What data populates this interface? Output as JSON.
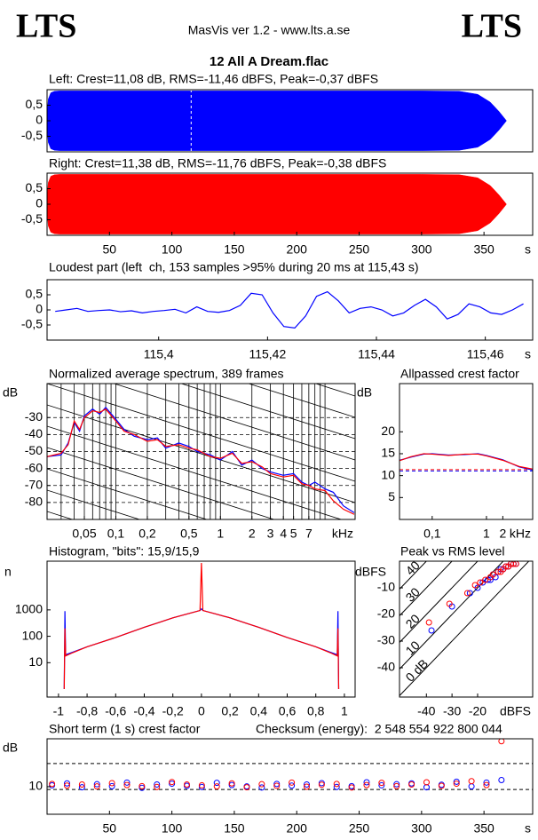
{
  "header": {
    "logo_left": "LTS",
    "app": "MasVis ver 1.2 - www.lts.a.se",
    "logo_right": "LTS",
    "file": "12 All A Dream.flac"
  },
  "chart_data": [
    {
      "type": "area",
      "title": "Left: Crest=11,08 dB, RMS=-11,46 dBFS, Peak=-0,37 dBFS",
      "x": [
        0,
        1,
        3,
        6,
        10,
        50,
        100,
        150,
        200,
        250,
        300,
        330,
        345,
        355,
        362,
        366,
        368
      ],
      "series": [
        {
          "color": "#0000ff",
          "values": [
            0.2,
            0.7,
            0.9,
            0.95,
            0.96,
            0.96,
            0.96,
            0.96,
            0.96,
            0.96,
            0.96,
            0.95,
            0.85,
            0.6,
            0.3,
            0.1,
            0
          ]
        },
        {
          "color": "#0000ff",
          "values": [
            -0.2,
            -0.7,
            -0.9,
            -0.95,
            -0.96,
            -0.96,
            -0.96,
            -0.96,
            -0.96,
            -0.96,
            -0.96,
            -0.95,
            -0.85,
            -0.6,
            -0.3,
            -0.1,
            0
          ]
        }
      ],
      "xlim": [
        0,
        389
      ],
      "ylim": [
        -1,
        1
      ],
      "yticks": [
        {
          "value": 0.5,
          "label": "0,5"
        },
        0,
        {
          "value": -0.5,
          "label": "-0,5"
        }
      ],
      "highlight_x": 115.43
    },
    {
      "type": "area",
      "title": "Right: Crest=11,38 dB, RMS=-11,76 dBFS, Peak=-0,38 dBFS",
      "x": [
        0,
        1,
        3,
        6,
        10,
        50,
        100,
        150,
        200,
        250,
        300,
        330,
        345,
        355,
        362,
        366,
        368
      ],
      "series": [
        {
          "color": "#ff0000",
          "values": [
            0.2,
            0.7,
            0.9,
            0.95,
            0.96,
            0.96,
            0.96,
            0.96,
            0.96,
            0.96,
            0.96,
            0.95,
            0.85,
            0.6,
            0.3,
            0.1,
            0
          ]
        },
        {
          "color": "#ff0000",
          "values": [
            -0.2,
            -0.7,
            -0.9,
            -0.95,
            -0.96,
            -0.96,
            -0.96,
            -0.96,
            -0.96,
            -0.96,
            -0.96,
            -0.95,
            -0.85,
            -0.6,
            -0.3,
            -0.1,
            0
          ]
        }
      ],
      "xlim": [
        0,
        389
      ],
      "ylim": [
        -1,
        1
      ],
      "yticks": [
        {
          "value": 0.5,
          "label": "0,5"
        },
        0,
        {
          "value": -0.5,
          "label": "-0,5"
        }
      ],
      "xticks": [
        50,
        100,
        150,
        200,
        250,
        300,
        350
      ],
      "x_unit": "s"
    },
    {
      "type": "line",
      "title": "Loudest part (left  ch, 153 samples >95% during 20 ms at 115,43 s)",
      "x": [
        115.381,
        115.383,
        115.385,
        115.387,
        115.389,
        115.391,
        115.393,
        115.395,
        115.397,
        115.399,
        115.401,
        115.403,
        115.405,
        115.407,
        115.409,
        115.411,
        115.413,
        115.415,
        115.417,
        115.419,
        115.421,
        115.423,
        115.425,
        115.427,
        115.429,
        115.431,
        115.433,
        115.435,
        115.437,
        115.439,
        115.441,
        115.443,
        115.445,
        115.447,
        115.449,
        115.451,
        115.453,
        115.455,
        115.457,
        115.459,
        115.461,
        115.463,
        115.465,
        115.467
      ],
      "series": [
        {
          "color": "#0000ff",
          "values": [
            -0.05,
            0,
            0.05,
            -0.05,
            -0.02,
            0,
            -0.06,
            -0.03,
            -0.1,
            -0.05,
            -0.02,
            0.02,
            -0.1,
            0.1,
            -0.05,
            -0.08,
            -0.02,
            0.15,
            0.55,
            0.5,
            -0.1,
            -0.55,
            -0.6,
            -0.2,
            0.45,
            0.6,
            0.3,
            -0.1,
            0.05,
            0.1,
            0,
            -0.2,
            -0.1,
            0.15,
            0.35,
            0.1,
            -0.3,
            -0.15,
            0.2,
            0.1,
            -0.1,
            -0.15,
            0,
            0.2
          ]
        }
      ],
      "xlim": [
        115.3795,
        115.4687
      ],
      "ylim": [
        -1,
        1
      ],
      "yticks": [
        {
          "value": 0.5,
          "label": "0,5"
        },
        0,
        {
          "value": -0.5,
          "label": "-0,5"
        }
      ],
      "xticks": [
        {
          "value": 115.4,
          "label": "115,4"
        },
        {
          "value": 115.42,
          "label": "115,42"
        },
        {
          "value": 115.44,
          "label": "115,44"
        },
        {
          "value": 115.46,
          "label": "115,46"
        }
      ],
      "x_unit": "s"
    },
    {
      "type": "line",
      "title": "Normalized average spectrum, 389 frames",
      "y_unit": "dB",
      "x_unit": "kHz",
      "xscale": "log",
      "grid": true,
      "x": [
        0.022,
        0.03,
        0.035,
        0.04,
        0.045,
        0.05,
        0.06,
        0.07,
        0.08,
        0.1,
        0.12,
        0.15,
        0.2,
        0.25,
        0.3,
        0.4,
        0.5,
        0.6,
        0.8,
        1,
        1.3,
        1.6,
        2,
        2.5,
        3,
        4,
        5,
        6,
        7,
        8,
        10,
        12,
        15,
        19
      ],
      "series": [
        {
          "color": "#0000ff",
          "values": [
            -53,
            -52,
            -45,
            -33,
            -38,
            -29,
            -25,
            -28,
            -24,
            -31,
            -37,
            -41,
            -43,
            -42,
            -48,
            -45,
            -47,
            -50,
            -52,
            -55,
            -50,
            -58,
            -55,
            -60,
            -62,
            -64,
            -63,
            -68,
            -70,
            -68,
            -72,
            -74,
            -82,
            -86
          ]
        },
        {
          "color": "#ff0000",
          "values": [
            -53,
            -51,
            -46,
            -32,
            -37,
            -30,
            -26,
            -27,
            -25,
            -32,
            -38,
            -40,
            -44,
            -43,
            -47,
            -46,
            -48,
            -49,
            -53,
            -54,
            -51,
            -57,
            -56,
            -59,
            -63,
            -65,
            -64,
            -69,
            -70,
            -72,
            -73,
            -79,
            -84,
            -87
          ]
        }
      ],
      "xlim": [
        0.022,
        19.4
      ],
      "ylim": [
        -90,
        -10
      ],
      "yticks": [
        -30,
        -40,
        -50,
        -60,
        -70,
        -80
      ],
      "xticks": [
        {
          "value": 0.05,
          "label": "0,05"
        },
        {
          "value": 0.1,
          "label": "0,1"
        },
        {
          "value": 0.2,
          "label": "0,2"
        },
        {
          "value": 0.5,
          "label": "0,5"
        },
        1,
        2,
        3,
        4,
        5,
        7
      ],
      "minor_xticks": [
        0.03,
        0.04,
        0.06,
        0.07,
        0.08,
        0.09,
        0.3,
        0.4,
        0.6,
        0.7,
        0.8,
        0.9,
        6,
        8,
        9,
        10
      ]
    },
    {
      "type": "line",
      "title": "Allpassed crest factor",
      "y_unit": "dB",
      "x_unit": "kHz",
      "xscale": "log",
      "x": [
        0.025,
        0.04,
        0.07,
        0.1,
        0.2,
        0.4,
        0.7,
        1,
        2,
        4,
        7
      ],
      "series": [
        {
          "color": "#0000ff",
          "values": [
            13.5,
            14.2,
            14.9,
            15,
            14.7,
            14.8,
            15,
            14.6,
            13.6,
            12,
            11.3
          ]
        },
        {
          "color": "#ff0000",
          "values": [
            13.4,
            14.3,
            15,
            14.9,
            14.6,
            14.9,
            14.9,
            14.5,
            13.5,
            12.1,
            11.5
          ]
        }
      ],
      "xlim": [
        0.025,
        7.1
      ],
      "ylim": [
        0,
        31
      ],
      "yticks": [
        20,
        15,
        10,
        5
      ],
      "xticks": [
        {
          "value": 0.1,
          "label": "0,1"
        },
        1,
        2
      ],
      "reference_lines": [
        {
          "value": 11.08,
          "color": "#0000ff"
        },
        {
          "value": 11.38,
          "color": "#ff0000"
        }
      ]
    },
    {
      "type": "line",
      "title": "Histogram, \"bits\": 15,9/15,9",
      "y_unit": "n",
      "yscale": "log",
      "x": [
        -0.96,
        -0.955,
        -0.95,
        -0.9,
        -0.8,
        -0.7,
        -0.6,
        -0.5,
        -0.4,
        -0.3,
        -0.2,
        -0.1,
        -0.01,
        0,
        0.01,
        0.1,
        0.2,
        0.3,
        0.4,
        0.5,
        0.6,
        0.7,
        0.8,
        0.9,
        0.95,
        0.955,
        0.96
      ],
      "series": [
        {
          "color": "#0000ff",
          "values": [
            1,
            900,
            20,
            25,
            40,
            60,
            90,
            140,
            220,
            330,
            500,
            700,
            950,
            1100,
            950,
            700,
            500,
            330,
            220,
            140,
            90,
            60,
            40,
            25,
            20,
            900,
            1
          ]
        },
        {
          "color": "#ff0000",
          "values": [
            1,
            200,
            18,
            24,
            40,
            60,
            90,
            140,
            220,
            330,
            500,
            700,
            950,
            60000,
            950,
            700,
            500,
            330,
            220,
            140,
            90,
            60,
            40,
            24,
            18,
            200,
            1
          ]
        }
      ],
      "xlim": [
        -1.08,
        1.075
      ],
      "ylim": [
        0.5,
        70000
      ],
      "yticks": [
        10,
        100,
        1000
      ],
      "xticks": [
        -1,
        {
          "value": -0.8,
          "label": "-0,8"
        },
        {
          "value": -0.6,
          "label": "-0,6"
        },
        {
          "value": -0.4,
          "label": "-0,4"
        },
        {
          "value": -0.2,
          "label": "-0,2"
        },
        0,
        {
          "value": 0.2,
          "label": "0,2"
        },
        {
          "value": 0.4,
          "label": "0,4"
        },
        {
          "value": 0.6,
          "label": "0,6"
        },
        {
          "value": 0.8,
          "label": "0,8"
        },
        1
      ]
    },
    {
      "type": "scatter",
      "title": "Peak vs RMS level",
      "y_unit": "dBFS",
      "x_unit": "dBFS",
      "series": [
        {
          "color": "#0000ff",
          "x": [
            -38,
            -30,
            -23,
            -20,
            -18,
            -16,
            -15,
            -14,
            -13,
            -12,
            -11,
            -10,
            -9,
            -8,
            -7,
            -6,
            -5
          ],
          "values": [
            -26,
            -17,
            -12,
            -10,
            -8,
            -7,
            -7,
            -5,
            -6,
            -4,
            -3,
            -3,
            -2,
            -2,
            -1,
            -1,
            -1
          ]
        },
        {
          "color": "#ff0000",
          "x": [
            -39,
            -31,
            -24,
            -21,
            -19,
            -17,
            -15,
            -14,
            -12,
            -11,
            -10,
            -9,
            -8,
            -7,
            -6,
            -5
          ],
          "values": [
            -23,
            -16,
            -12,
            -9,
            -8,
            -7,
            -6,
            -5,
            -4,
            -4,
            -3,
            -2,
            -2,
            -1,
            -1,
            -1
          ]
        }
      ],
      "xlim": [
        -50.5,
        1.5
      ],
      "ylim": [
        -51,
        0
      ],
      "yticks": [
        -10,
        -20,
        -30,
        -40
      ],
      "xticks": [
        -40,
        -30,
        -20
      ],
      "crest_lines": [
        {
          "value": 40,
          "label": "40"
        },
        {
          "value": 30,
          "label": "30"
        },
        {
          "value": 20,
          "label": "20"
        },
        {
          "value": 10,
          "label": "10"
        },
        {
          "value": 0,
          "label": "0 dB"
        }
      ]
    },
    {
      "type": "scatter",
      "title": "Short term (1 s) crest factor",
      "subtitle": "Checksum (energy):  2 548 554 922 800 044",
      "y_unit": "dB",
      "x_unit": "s",
      "x": [
        4,
        16,
        28,
        40,
        52,
        64,
        76,
        88,
        100,
        112,
        124,
        136,
        148,
        160,
        172,
        184,
        196,
        208,
        220,
        232,
        244,
        256,
        268,
        280,
        292,
        304,
        316,
        328,
        340,
        352,
        364
      ],
      "series": [
        {
          "color": "#0000ff",
          "values": [
            10.5,
            11.2,
            9.8,
            10.9,
            10.2,
            11.5,
            9.6,
            10.8,
            11.1,
            10.3,
            9.9,
            11.4,
            10.6,
            10.1,
            9.7,
            11,
            10.4,
            10.8,
            11.3,
            9.9,
            10.2,
            11.6,
            10.5,
            10.9,
            11.2,
            9.8,
            10.7,
            11.8,
            10.1,
            11.5,
            12.4
          ]
        },
        {
          "color": "#ff0000",
          "values": [
            11,
            10.4,
            10.8,
            10.1,
            11.3,
            10.6,
            10.2,
            9.9,
            11.7,
            10.8,
            10.5,
            10.1,
            11.2,
            9.8,
            10.9,
            10.3,
            11.5,
            10,
            10.7,
            11,
            9.7,
            10.6,
            11.4,
            10.2,
            10.8,
            11.6,
            10.3,
            11.1,
            12,
            10.6,
            26.5
          ]
        }
      ],
      "xlim": [
        0,
        389
      ],
      "ylim": [
        0,
        27.4
      ],
      "yticks": [
        10
      ],
      "xticks": [
        50,
        100,
        150,
        200,
        250,
        300,
        350
      ],
      "reference_lines": [
        {
          "value": 18.4,
          "color": "#000000"
        },
        {
          "value": 9,
          "color": "#000000"
        }
      ]
    }
  ]
}
